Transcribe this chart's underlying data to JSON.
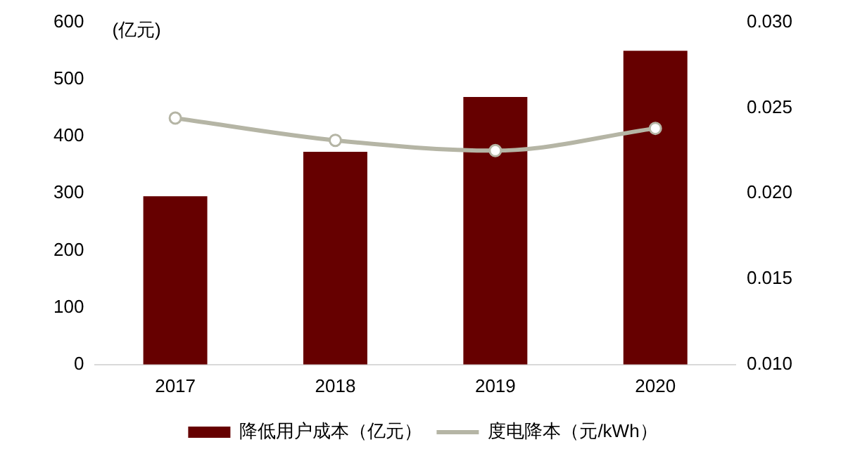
{
  "chart_data": {
    "type": "bar",
    "ylabel": "(亿元)",
    "categories": [
      "2017",
      "2018",
      "2019",
      "2020"
    ],
    "series": [
      {
        "name": "降低用户成本（亿元）",
        "color": "#660000",
        "values": [
          295,
          373,
          469,
          550
        ]
      },
      {
        "name": "度电降本（元/kWh）",
        "type": "line",
        "axis": "y2",
        "color": "#b5b5a5",
        "values": [
          0.0244,
          0.0231,
          0.0225,
          0.0238
        ]
      }
    ],
    "ylim": [
      0,
      600
    ],
    "yticks": [
      0,
      100,
      200,
      300,
      400,
      500,
      600
    ],
    "y2lim": [
      0.01,
      0.03
    ],
    "y2ticks": [
      {
        "value": 0.01,
        "label": "0.010"
      },
      {
        "value": 0.015,
        "label": "0.015"
      },
      {
        "value": 0.02,
        "label": "0.020"
      },
      {
        "value": 0.025,
        "label": "0.025"
      },
      {
        "value": 0.03,
        "label": "0.030"
      }
    ],
    "grid": false,
    "legend": "bottom",
    "marker": "circle"
  }
}
